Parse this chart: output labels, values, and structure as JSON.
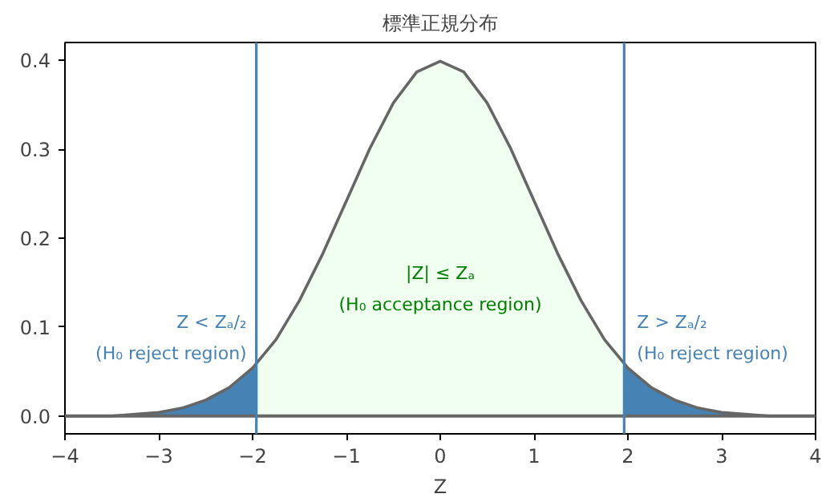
{
  "chart_data": {
    "type": "line",
    "title": "標準正規分布",
    "xlabel": "Z",
    "xlim": [
      -4,
      4
    ],
    "ylim": [
      -0.02,
      0.42
    ],
    "xticks": [
      {
        "value": -4,
        "label": "−4"
      },
      {
        "value": -3,
        "label": "−3"
      },
      {
        "value": -2,
        "label": "−2"
      },
      {
        "value": -1,
        "label": "−1"
      },
      0,
      1,
      2,
      3,
      4
    ],
    "yticks": [
      {
        "value": 0,
        "label": "0.0"
      },
      0.1,
      0.2,
      0.3,
      0.4
    ],
    "grid": false,
    "marker": "none",
    "line_style": "solid",
    "series": [
      {
        "type": "area",
        "color": "#4682b4",
        "x": [
          -4,
          -3.5,
          -3,
          -2.75,
          -2.5,
          -2.25,
          -2,
          -1.96
        ],
        "values": [
          0,
          0,
          0.004,
          0.009,
          0.018,
          0.032,
          0.054,
          0.058
        ]
      },
      {
        "type": "area",
        "color": "#f0fff0",
        "x": [
          -1.96,
          -1.75,
          -1.5,
          -1.25,
          -1,
          -0.75,
          -0.5,
          -0.25,
          0,
          0.25,
          0.5,
          0.75,
          1,
          1.25,
          1.5,
          1.75,
          1.96
        ],
        "values": [
          0.058,
          0.086,
          0.13,
          0.183,
          0.242,
          0.301,
          0.352,
          0.387,
          0.399,
          0.387,
          0.352,
          0.301,
          0.242,
          0.183,
          0.13,
          0.086,
          0.058
        ]
      },
      {
        "type": "area",
        "color": "#4682b4",
        "x": [
          1.96,
          2,
          2.25,
          2.5,
          2.75,
          3,
          3.5,
          4
        ],
        "values": [
          0.058,
          0.054,
          0.032,
          0.018,
          0.009,
          0.004,
          0,
          0
        ]
      },
      {
        "color": "#666666",
        "x": [
          -4,
          -3.5,
          -3,
          -2.75,
          -2.5,
          -2.25,
          -2,
          -1.75,
          -1.5,
          -1.25,
          -1,
          -0.75,
          -0.5,
          -0.25,
          0,
          0.25,
          0.5,
          0.75,
          1,
          1.25,
          1.5,
          1.75,
          2,
          2.25,
          2.5,
          2.75,
          3,
          3.5,
          4
        ],
        "values": [
          0,
          0,
          0.004,
          0.009,
          0.018,
          0.032,
          0.054,
          0.086,
          0.13,
          0.183,
          0.242,
          0.301,
          0.352,
          0.387,
          0.399,
          0.387,
          0.352,
          0.301,
          0.242,
          0.183,
          0.13,
          0.086,
          0.054,
          0.032,
          0.018,
          0.009,
          0.004,
          0,
          0
        ]
      }
    ],
    "ref_lines": [
      {
        "axis": "y",
        "value": 0,
        "color": "#666666"
      },
      {
        "axis": "x",
        "value": -1.96,
        "color": "#4682b4"
      },
      {
        "axis": "x",
        "value": 1.96,
        "color": "#4682b4"
      }
    ],
    "annotations": [
      "Z < Zₐ/₂",
      "(H₀ reject region)",
      "|Z| ≤ Zₐ",
      "(H₀ acceptance region)",
      "Z > Zₐ/₂",
      "(H₀ reject region)"
    ]
  }
}
